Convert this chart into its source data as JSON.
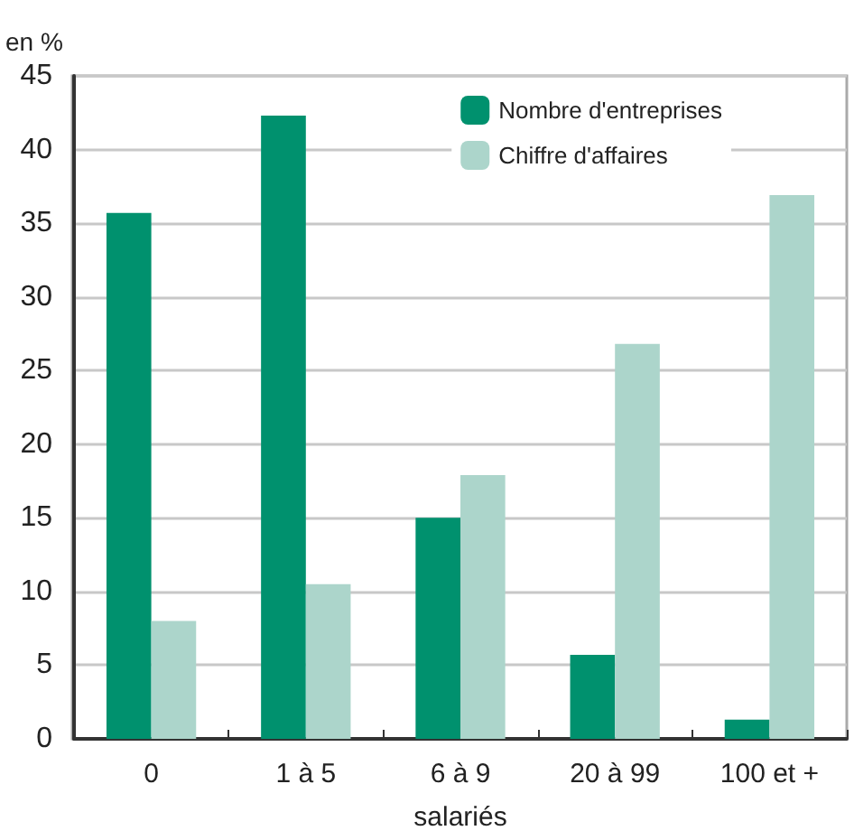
{
  "chart_data": {
    "type": "bar",
    "ylabel": "en %",
    "xlabel": "salariés",
    "categories": [
      "0",
      "1 à 5",
      "6 à 9",
      "20 à 99",
      "100 et +"
    ],
    "series": [
      {
        "name": "Nombre d'entreprises",
        "color": "#00916e",
        "values": [
          35.7,
          42.3,
          15.0,
          5.7,
          1.3
        ]
      },
      {
        "name": "Chiffre d'affaires",
        "color": "#acd5cb",
        "values": [
          8.0,
          10.5,
          17.9,
          26.8,
          36.9
        ]
      }
    ],
    "ylim": [
      0,
      45
    ],
    "yticks": [
      0,
      5,
      10,
      15,
      20,
      25,
      30,
      35,
      40,
      45
    ],
    "grid": "y",
    "legend": "top right"
  }
}
